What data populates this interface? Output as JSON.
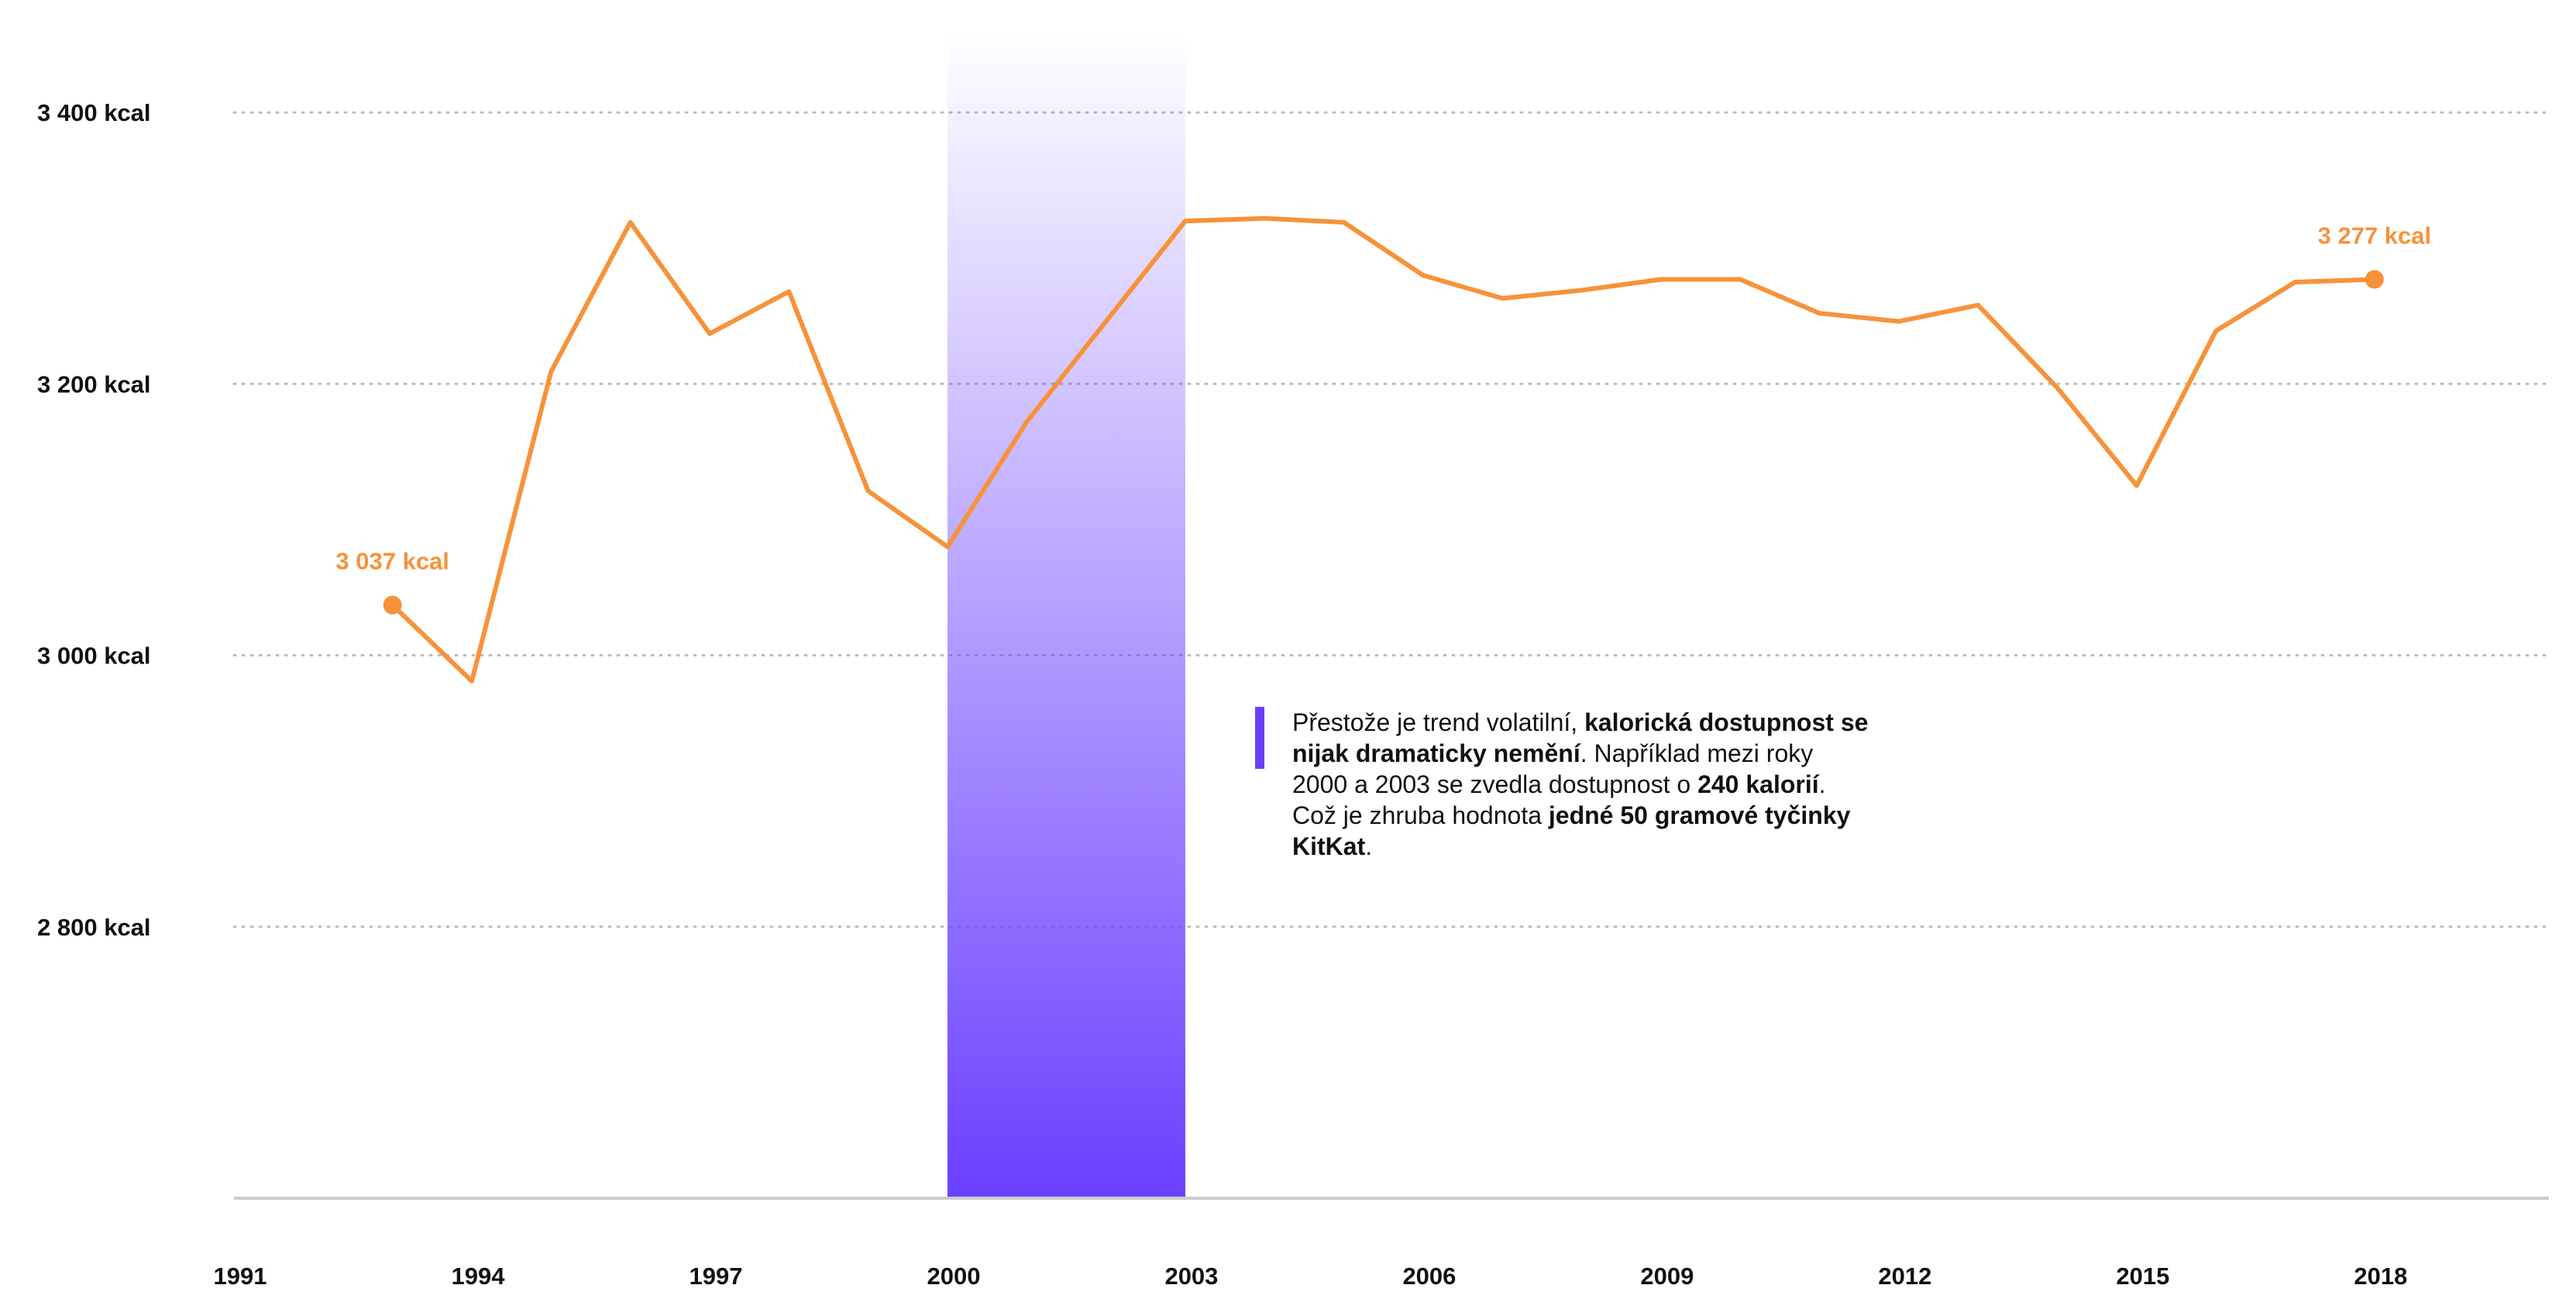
{
  "chart_data": {
    "type": "line",
    "x": [
      1993,
      1994,
      1995,
      1996,
      1997,
      1998,
      1999,
      2000,
      2001,
      2002,
      2003,
      2004,
      2005,
      2006,
      2007,
      2008,
      2009,
      2010,
      2011,
      2012,
      2013,
      2014,
      2015,
      2016,
      2017,
      2018
    ],
    "series": [
      {
        "values": [
          3037,
          2981,
          3209,
          3319,
          3237,
          3268,
          3121,
          3080,
          3172,
          3246,
          3320,
          3322,
          3319,
          3280,
          3263,
          3269,
          3277,
          3277,
          3252,
          3246,
          3258,
          3197,
          3125,
          3239,
          3275,
          3277
        ]
      }
    ],
    "xlim": [
      1991,
      2020.2
    ],
    "ylim": [
      2600,
      3460
    ],
    "xticks": [
      "1991",
      "1994",
      "1997",
      "2000",
      "2003",
      "2006",
      "2009",
      "2012",
      "2015",
      "2018"
    ],
    "xtick_values": [
      1991,
      1994,
      1997,
      2000,
      2003,
      2006,
      2009,
      2012,
      2015,
      2018
    ],
    "yticks": [
      "2 800 kcal",
      "3 000 kcal",
      "3 200 kcal",
      "3 400 kcal"
    ],
    "ytick_values": [
      2800,
      3000,
      3200,
      3400
    ],
    "highlight_range": [
      2000,
      2003
    ],
    "start_label": "3 037 kcal",
    "end_label": "3 277 kcal",
    "grid": "horizontal dotted",
    "colors": {
      "line": "#F7923A",
      "highlight": "#6A3FFF",
      "grid": "#bbbbbb",
      "axis": "#cccccc"
    },
    "annotation": {
      "p1": "Přestože je trend volatilní, ",
      "b1": "kalorická dostupnost se nijak dramaticky nemění",
      "p2": ". Například mezi roky 2000 a 2003 se zvedla dostupnost o ",
      "b2": "240 kalorií",
      "p3": ". Což je zhruba hodnota ",
      "b3": "jedné 50 gramové tyčinky KitKat",
      "p4": "."
    }
  }
}
